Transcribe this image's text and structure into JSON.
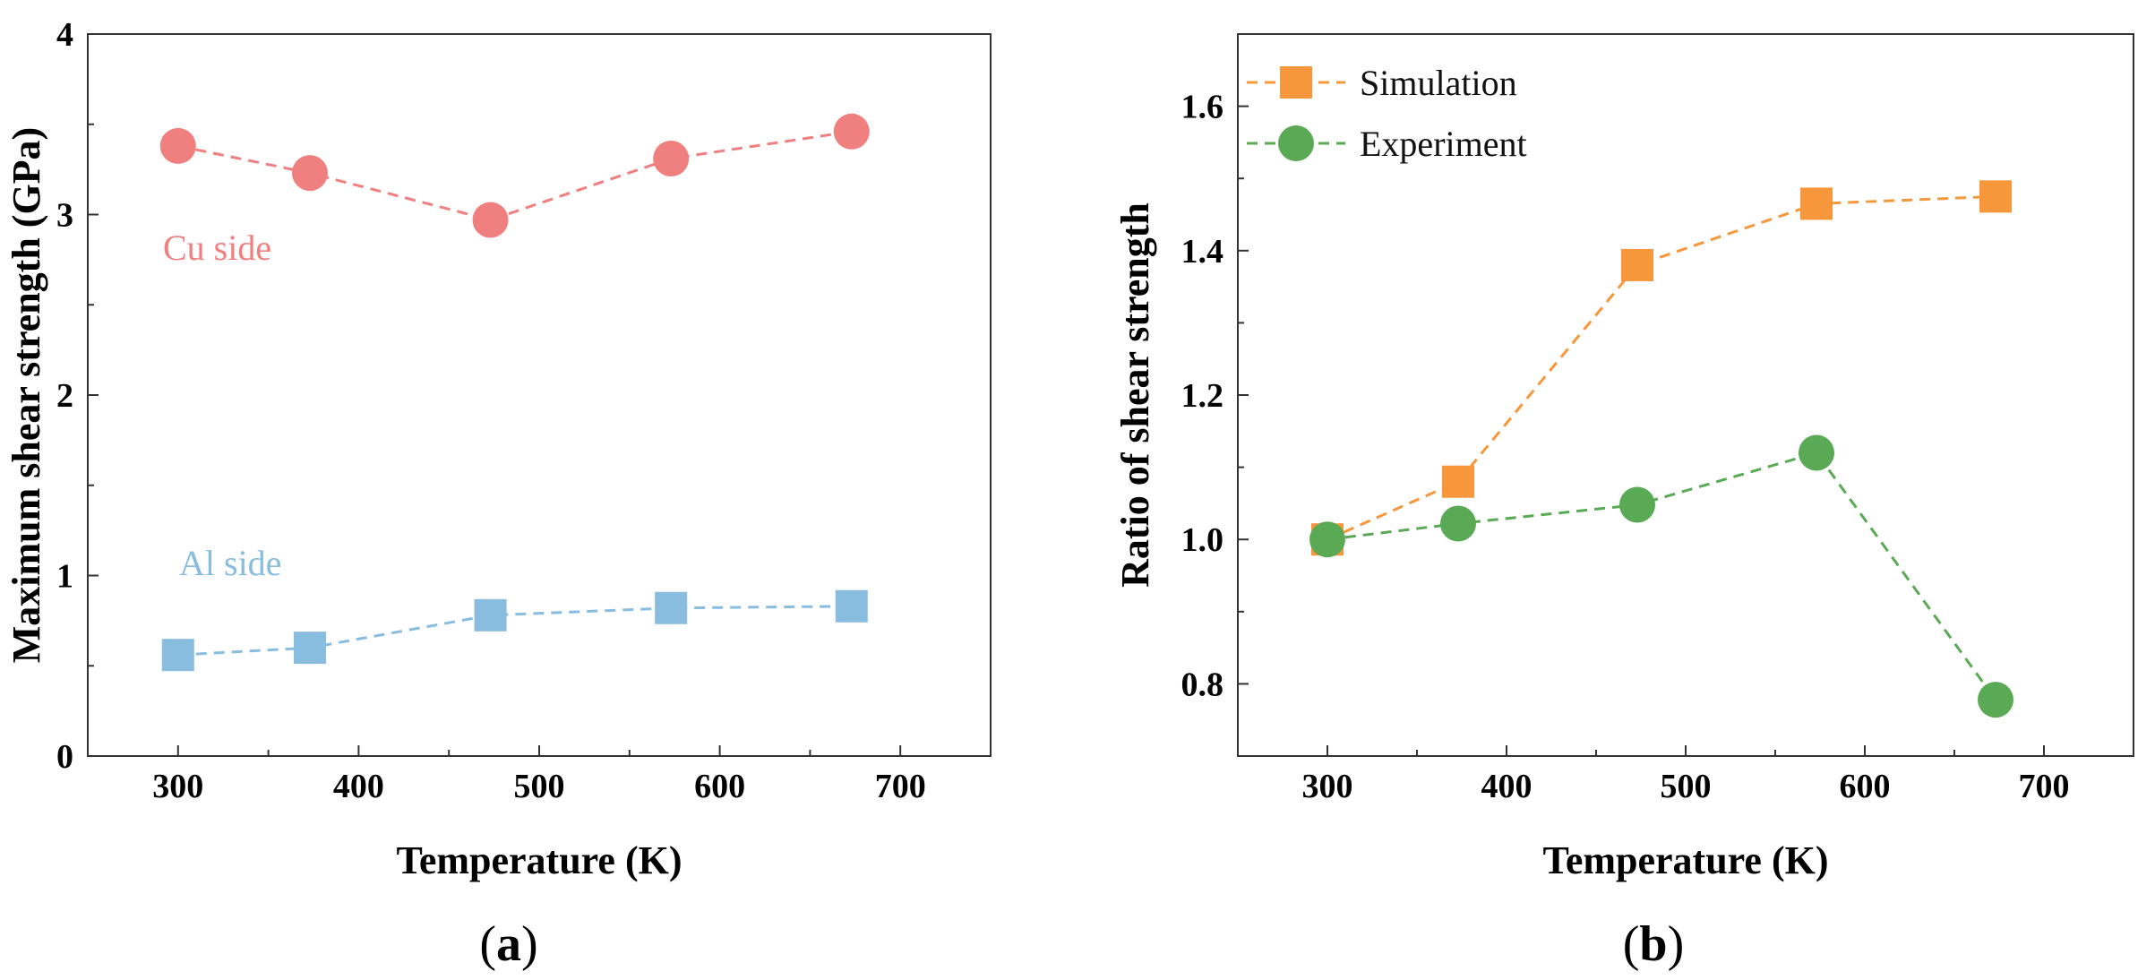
{
  "chart_data": [
    {
      "type": "line",
      "panel": "a",
      "xlabel": "Temperature (K)",
      "ylabel": "Maximum shear strength (GPa)",
      "xlim": [
        250,
        750
      ],
      "ylim": [
        0,
        4
      ],
      "xticks": [
        300,
        400,
        500,
        600,
        700
      ],
      "yticks": [
        0,
        1,
        2,
        3,
        4
      ],
      "grid": false,
      "series": [
        {
          "name": "Cu side",
          "marker": "circle",
          "color": "#f08080",
          "x": [
            300,
            373,
            473,
            573,
            673
          ],
          "values": [
            3.38,
            3.23,
            2.97,
            3.31,
            3.46
          ]
        },
        {
          "name": "Al side",
          "marker": "square",
          "color": "#88bde0",
          "x": [
            300,
            373,
            473,
            573,
            673
          ],
          "values": [
            0.56,
            0.6,
            0.78,
            0.82,
            0.83
          ]
        }
      ],
      "annotations": [
        {
          "text": "Cu side",
          "series": "Cu side"
        },
        {
          "text": "Al side",
          "series": "Al side"
        }
      ]
    },
    {
      "type": "line",
      "panel": "b",
      "xlabel": "Temperature (K)",
      "ylabel": "Ratio of shear strength",
      "xlim": [
        250,
        750
      ],
      "ylim": [
        0.7,
        1.7
      ],
      "xticks": [
        300,
        400,
        500,
        600,
        700
      ],
      "yticks": [
        0.8,
        1.0,
        1.2,
        1.4,
        1.6
      ],
      "grid": false,
      "legend": "top-left",
      "series": [
        {
          "name": "Simulation",
          "marker": "square",
          "color": "#f5973a",
          "x": [
            300,
            373,
            473,
            573,
            673
          ],
          "values": [
            1.0,
            1.08,
            1.38,
            1.465,
            1.475
          ]
        },
        {
          "name": "Experiment",
          "marker": "circle",
          "color": "#5aaa55",
          "x": [
            300,
            373,
            473,
            573,
            673
          ],
          "values": [
            1.0,
            1.022,
            1.048,
            1.12,
            0.778
          ]
        }
      ]
    }
  ],
  "panel_labels": {
    "a": {
      "open": "(",
      "letter": "a",
      "close": ")"
    },
    "b": {
      "open": "(",
      "letter": "b",
      "close": ")"
    }
  }
}
